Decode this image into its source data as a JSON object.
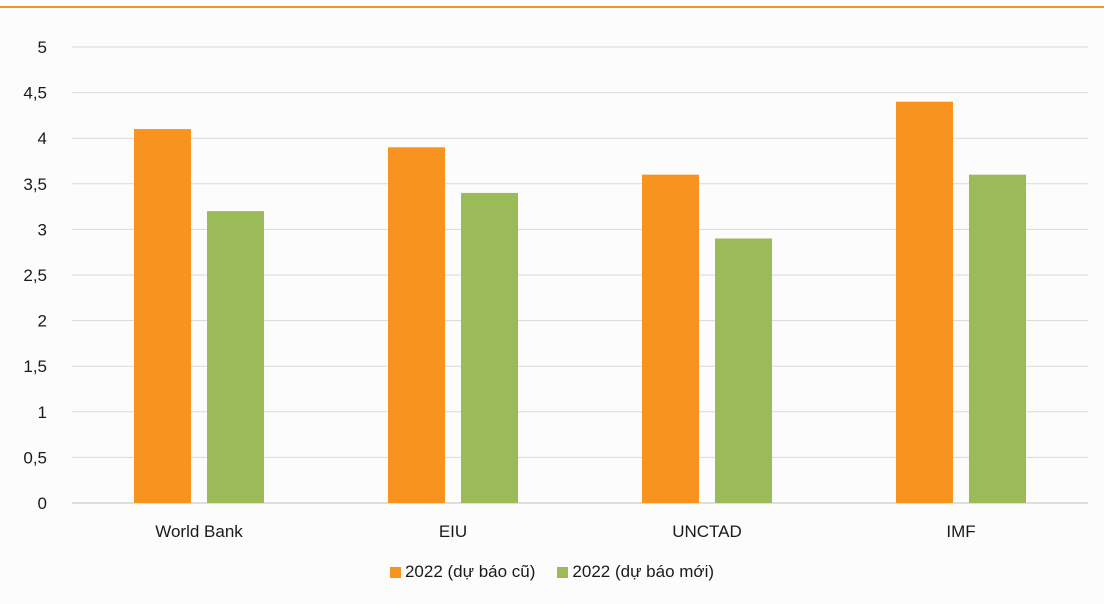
{
  "chart_data": {
    "type": "bar",
    "categories": [
      "World Bank",
      "EIU",
      "UNCTAD",
      "IMF"
    ],
    "series": [
      {
        "name": "2022 (dự báo cũ)",
        "values": [
          4.1,
          3.9,
          3.6,
          4.4
        ],
        "color": "#f7931e"
      },
      {
        "name": "2022 (dự báo mới)",
        "values": [
          3.2,
          3.4,
          2.9,
          3.6
        ],
        "color": "#9bbb59"
      }
    ],
    "ylim": [
      0,
      5
    ],
    "yticks": [
      "0",
      "0,5",
      "1",
      "1,5",
      "2",
      "2,5",
      "3",
      "3,5",
      "4",
      "4,5",
      "5"
    ],
    "title": "",
    "xlabel": "",
    "ylabel": "",
    "grid": true,
    "legend_position": "bottom"
  },
  "colors": {
    "gridline": "#d9d9d9",
    "axis": "#bfbfbf",
    "accent_rule": "#f7931e"
  }
}
